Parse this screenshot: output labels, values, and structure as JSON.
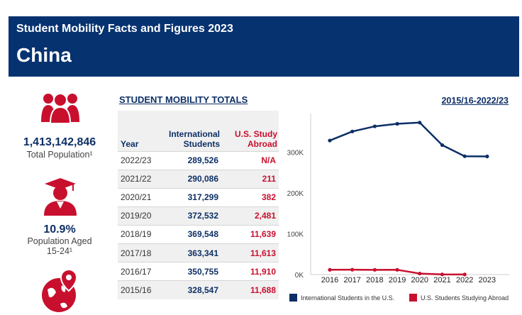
{
  "header": {
    "subtitle": "Student Mobility Facts and Figures 2023",
    "title": "China"
  },
  "colors": {
    "navy": "#063270",
    "red": "#c8102e"
  },
  "stats": [
    {
      "icon": "people-icon",
      "value": "1,413,142,846",
      "label": "Total Population¹"
    },
    {
      "icon": "graduate-icon",
      "value": "10.9%",
      "label_line1": "Population Aged",
      "label_line2": "15-24¹"
    },
    {
      "icon": "globe-location-icon"
    }
  ],
  "table": {
    "title": "STUDENT MOBILITY TOTALS",
    "headers": {
      "year": "Year",
      "intl_line1": "International",
      "intl_line2": "Students",
      "abroad_line1": "U.S. Study",
      "abroad_line2": "Abroad"
    },
    "rows": [
      {
        "year": "2022/23",
        "intl": "289,526",
        "abroad": "N/A"
      },
      {
        "year": "2021/22",
        "intl": "290,086",
        "abroad": "211"
      },
      {
        "year": "2020/21",
        "intl": "317,299",
        "abroad": "382"
      },
      {
        "year": "2019/20",
        "intl": "372,532",
        "abroad": "2,481"
      },
      {
        "year": "2018/19",
        "intl": "369,548",
        "abroad": "11,639"
      },
      {
        "year": "2017/18",
        "intl": "363,341",
        "abroad": "11,613"
      },
      {
        "year": "2016/17",
        "intl": "350,755",
        "abroad": "11,910"
      },
      {
        "year": "2015/16",
        "intl": "328,547",
        "abroad": "11,688"
      }
    ]
  },
  "chart_data": {
    "type": "line",
    "title": "2015/16-2022/23",
    "x": [
      "2016",
      "2017",
      "2018",
      "2019",
      "2020",
      "2021",
      "2022",
      "2023"
    ],
    "ylim": [
      0,
      400000
    ],
    "yticks": [
      {
        "value": 0,
        "label": "0K"
      },
      {
        "value": 100000,
        "label": "100K"
      },
      {
        "value": 200000,
        "label": "200K"
      },
      {
        "value": 300000,
        "label": "300K"
      }
    ],
    "series": [
      {
        "name": "International Students in the U.S.",
        "color": "#0d2f66",
        "values": [
          328547,
          350755,
          363341,
          369548,
          372532,
          317299,
          290086,
          289526
        ]
      },
      {
        "name": "U.S. Students Studying Abroad",
        "color": "#c8102e",
        "values": [
          11688,
          11910,
          11613,
          11639,
          2481,
          382,
          211,
          null
        ]
      }
    ]
  }
}
